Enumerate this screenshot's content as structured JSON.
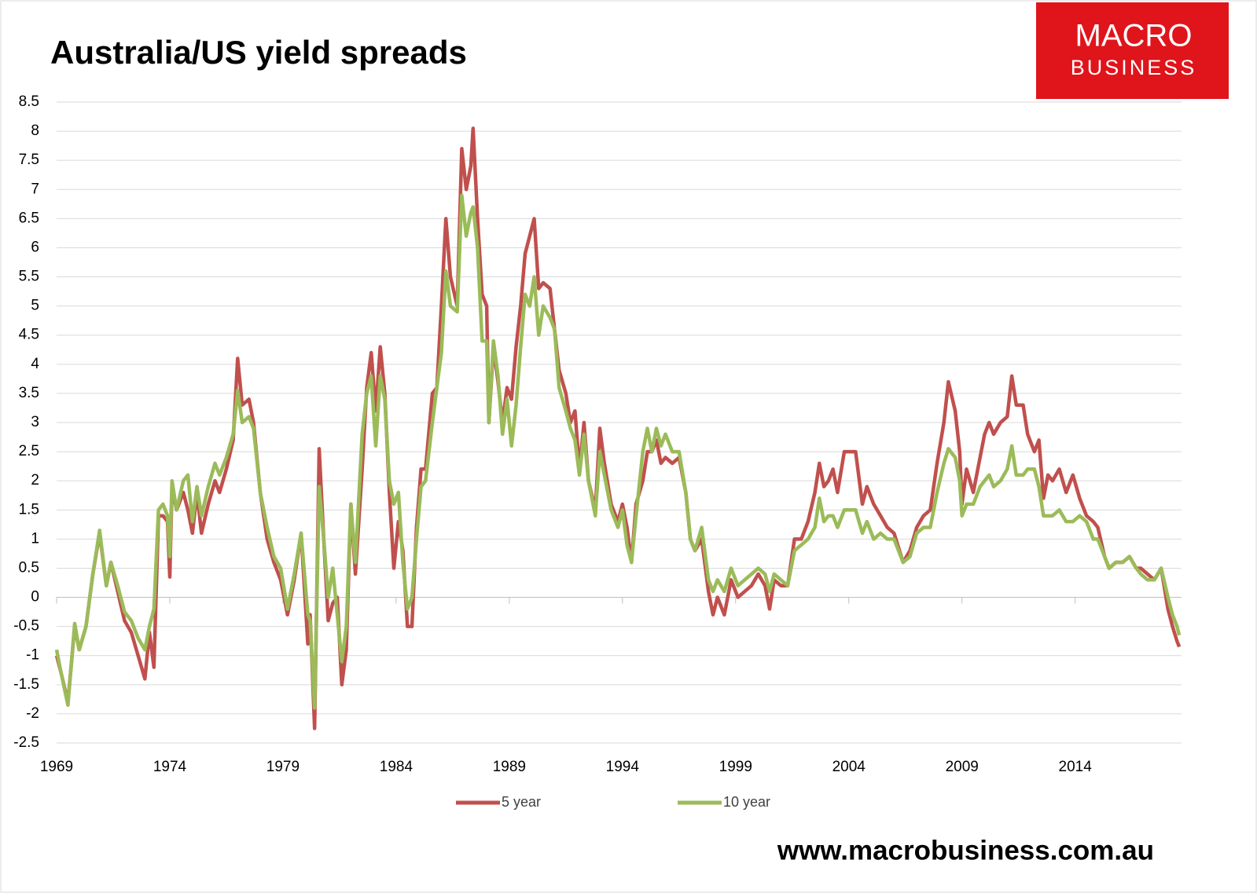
{
  "logo": [
    "MACRO",
    "BUSINESS"
  ],
  "footer": "www.macrobusiness.com.au",
  "chart_data": {
    "type": "line",
    "title": "Australia/US yield spreads",
    "x": [
      1969.0,
      1969.2,
      1969.5,
      1969.8,
      1970.0,
      1970.3,
      1970.6,
      1970.9,
      1971.2,
      1971.4,
      1971.7,
      1972.0,
      1972.3,
      1972.6,
      1972.9,
      1973.1,
      1973.3,
      1973.5,
      1973.7,
      1973.9,
      1974.0,
      1974.1,
      1974.3,
      1974.6,
      1974.8,
      1975.0,
      1975.2,
      1975.4,
      1975.7,
      1976.0,
      1976.2,
      1976.5,
      1976.8,
      1977.0,
      1977.2,
      1977.5,
      1977.7,
      1978.0,
      1978.3,
      1978.6,
      1978.9,
      1979.2,
      1979.5,
      1979.8,
      1980.1,
      1980.2,
      1980.4,
      1980.6,
      1980.8,
      1981.0,
      1981.2,
      1981.4,
      1981.6,
      1981.8,
      1982.0,
      1982.2,
      1982.5,
      1982.7,
      1982.9,
      1983.1,
      1983.3,
      1983.5,
      1983.7,
      1983.9,
      1984.1,
      1984.3,
      1984.5,
      1984.7,
      1984.9,
      1985.1,
      1985.3,
      1985.6,
      1985.8,
      1986.0,
      1986.2,
      1986.4,
      1986.7,
      1986.9,
      1987.1,
      1987.3,
      1987.4,
      1987.6,
      1987.8,
      1988.0,
      1988.1,
      1988.3,
      1988.5,
      1988.7,
      1988.9,
      1989.1,
      1989.3,
      1989.5,
      1989.7,
      1989.9,
      1990.1,
      1990.3,
      1990.5,
      1990.8,
      1991.0,
      1991.2,
      1991.5,
      1991.7,
      1991.9,
      1992.1,
      1992.3,
      1992.5,
      1992.8,
      1993.0,
      1993.2,
      1993.5,
      1993.8,
      1994.0,
      1994.2,
      1994.4,
      1994.6,
      1994.9,
      1995.1,
      1995.3,
      1995.5,
      1995.7,
      1995.9,
      1996.2,
      1996.5,
      1996.8,
      1997.0,
      1997.2,
      1997.5,
      1997.8,
      1998.0,
      1998.2,
      1998.5,
      1998.8,
      1999.1,
      1999.4,
      1999.7,
      2000.0,
      2000.3,
      2000.5,
      2000.7,
      2001.0,
      2001.3,
      2001.6,
      2001.9,
      2002.2,
      2002.5,
      2002.7,
      2002.9,
      2003.1,
      2003.3,
      2003.5,
      2003.8,
      2004.0,
      2004.3,
      2004.6,
      2004.8,
      2005.1,
      2005.4,
      2005.7,
      2006.0,
      2006.4,
      2006.7,
      2007.0,
      2007.3,
      2007.6,
      2007.9,
      2008.2,
      2008.4,
      2008.7,
      2008.9,
      2009.0,
      2009.2,
      2009.5,
      2009.8,
      2010.0,
      2010.2,
      2010.4,
      2010.7,
      2011.0,
      2011.2,
      2011.4,
      2011.7,
      2011.9,
      2012.2,
      2012.4,
      2012.6,
      2012.8,
      2013.0,
      2013.3,
      2013.6,
      2013.9,
      2014.2,
      2014.5,
      2014.8,
      2015.0,
      2015.3,
      2015.5,
      2015.8,
      2016.1,
      2016.4,
      2016.7,
      2016.9,
      2017.2,
      2017.5,
      2017.8,
      2018.1,
      2018.3,
      2018.5,
      2018.6
    ],
    "series": [
      {
        "name": "5 year",
        "color": "#c0504d",
        "values": [
          -1.0,
          -1.3,
          -1.8,
          -0.5,
          -0.9,
          -0.5,
          0.4,
          1.1,
          0.2,
          0.6,
          0.1,
          -0.4,
          -0.6,
          -1.0,
          -1.4,
          -0.6,
          -1.2,
          1.4,
          1.4,
          1.3,
          0.35,
          1.9,
          1.5,
          1.8,
          1.5,
          1.1,
          1.8,
          1.1,
          1.6,
          2.0,
          1.8,
          2.2,
          2.7,
          4.1,
          3.3,
          3.4,
          3.0,
          1.8,
          1.0,
          0.6,
          0.3,
          -0.3,
          0.3,
          1.1,
          -0.8,
          -0.3,
          -2.25,
          2.55,
          1.0,
          -0.4,
          -0.1,
          0.0,
          -1.5,
          -0.9,
          1.6,
          0.4,
          2.2,
          3.6,
          4.2,
          3.2,
          4.3,
          3.5,
          1.8,
          0.5,
          1.3,
          0.8,
          -0.5,
          -0.5,
          1.2,
          2.2,
          2.2,
          3.5,
          3.6,
          5.0,
          6.5,
          5.5,
          5.0,
          7.7,
          7.0,
          7.4,
          8.05,
          6.5,
          5.2,
          5.0,
          3.0,
          4.3,
          3.7,
          3.0,
          3.6,
          3.4,
          4.3,
          5.0,
          5.9,
          6.2,
          6.5,
          5.3,
          5.4,
          5.3,
          4.6,
          3.9,
          3.5,
          3.0,
          3.2,
          2.2,
          3.0,
          2.0,
          1.5,
          2.9,
          2.3,
          1.6,
          1.3,
          1.6,
          1.2,
          0.6,
          1.6,
          2.0,
          2.5,
          2.5,
          2.7,
          2.3,
          2.4,
          2.3,
          2.4,
          1.8,
          1.0,
          0.8,
          1.0,
          0.1,
          -0.3,
          0.0,
          -0.3,
          0.3,
          0.0,
          0.1,
          0.2,
          0.4,
          0.2,
          -0.2,
          0.3,
          0.2,
          0.2,
          1.0,
          1.0,
          1.3,
          1.8,
          2.3,
          1.9,
          2.0,
          2.2,
          1.8,
          2.5,
          2.5,
          2.5,
          1.6,
          1.9,
          1.6,
          1.4,
          1.2,
          1.1,
          0.6,
          0.8,
          1.2,
          1.4,
          1.5,
          2.3,
          3.0,
          3.7,
          3.2,
          2.5,
          1.6,
          2.2,
          1.8,
          2.4,
          2.8,
          3.0,
          2.8,
          3.0,
          3.1,
          3.8,
          3.3,
          3.3,
          2.8,
          2.5,
          2.7,
          1.7,
          2.1,
          2.0,
          2.2,
          1.8,
          2.1,
          1.7,
          1.4,
          1.3,
          1.2,
          0.7,
          0.5,
          0.6,
          0.6,
          0.7,
          0.5,
          0.5,
          0.4,
          0.3,
          0.5,
          -0.2,
          -0.5,
          -0.75,
          -0.85
        ]
      },
      {
        "name": "10 year",
        "color": "#9bbb59",
        "values": [
          -0.9,
          -1.3,
          -1.85,
          -0.45,
          -0.9,
          -0.5,
          0.4,
          1.15,
          0.2,
          0.6,
          0.2,
          -0.25,
          -0.4,
          -0.7,
          -0.9,
          -0.5,
          -0.2,
          1.5,
          1.6,
          1.4,
          0.7,
          2.0,
          1.5,
          2.0,
          2.1,
          1.3,
          1.9,
          1.4,
          1.9,
          2.3,
          2.1,
          2.4,
          2.8,
          3.55,
          3.0,
          3.1,
          2.9,
          1.8,
          1.2,
          0.7,
          0.5,
          -0.2,
          0.4,
          1.1,
          -0.3,
          -0.4,
          -1.9,
          1.9,
          1.0,
          0.0,
          0.5,
          -0.3,
          -1.1,
          -0.5,
          1.6,
          0.6,
          2.8,
          3.5,
          3.8,
          2.6,
          3.8,
          3.4,
          2.0,
          1.6,
          1.8,
          0.6,
          -0.2,
          0.0,
          1.0,
          1.9,
          2.0,
          3.0,
          3.6,
          4.2,
          5.6,
          5.0,
          4.9,
          6.9,
          6.2,
          6.6,
          6.7,
          6.0,
          4.4,
          4.4,
          3.0,
          4.4,
          3.8,
          2.8,
          3.4,
          2.6,
          3.3,
          4.3,
          5.2,
          5.0,
          5.5,
          4.5,
          5.0,
          4.8,
          4.6,
          3.6,
          3.2,
          2.9,
          2.7,
          2.1,
          2.8,
          2.0,
          1.4,
          2.5,
          2.1,
          1.5,
          1.2,
          1.5,
          0.9,
          0.6,
          1.4,
          2.5,
          2.9,
          2.5,
          2.9,
          2.6,
          2.8,
          2.5,
          2.5,
          1.8,
          1.0,
          0.8,
          1.2,
          0.3,
          0.1,
          0.3,
          0.1,
          0.5,
          0.2,
          0.3,
          0.4,
          0.5,
          0.4,
          0.1,
          0.4,
          0.3,
          0.2,
          0.8,
          0.9,
          1.0,
          1.2,
          1.7,
          1.3,
          1.4,
          1.4,
          1.2,
          1.5,
          1.5,
          1.5,
          1.1,
          1.3,
          1.0,
          1.1,
          1.0,
          1.0,
          0.6,
          0.7,
          1.1,
          1.2,
          1.2,
          1.8,
          2.3,
          2.55,
          2.4,
          2.0,
          1.4,
          1.6,
          1.6,
          1.9,
          2.0,
          2.1,
          1.9,
          2.0,
          2.2,
          2.6,
          2.1,
          2.1,
          2.2,
          2.2,
          1.9,
          1.4,
          1.4,
          1.4,
          1.5,
          1.3,
          1.3,
          1.4,
          1.3,
          1.0,
          1.0,
          0.7,
          0.5,
          0.6,
          0.6,
          0.7,
          0.5,
          0.4,
          0.3,
          0.3,
          0.5,
          0.0,
          -0.3,
          -0.5,
          -0.65
        ]
      }
    ],
    "xlim": [
      1969,
      2018.7
    ],
    "xticks": [
      1969,
      1974,
      1979,
      1984,
      1989,
      1994,
      1999,
      2004,
      2009,
      2014
    ],
    "ylim": [
      -2.5,
      8.5
    ],
    "yticks": [
      -2.5,
      -2,
      -1.5,
      -1,
      -0.5,
      0,
      0.5,
      1,
      1.5,
      2,
      2.5,
      3,
      3.5,
      4,
      4.5,
      5,
      5.5,
      6,
      6.5,
      7,
      7.5,
      8,
      8.5
    ],
    "grid": true,
    "legend": "bottom"
  }
}
